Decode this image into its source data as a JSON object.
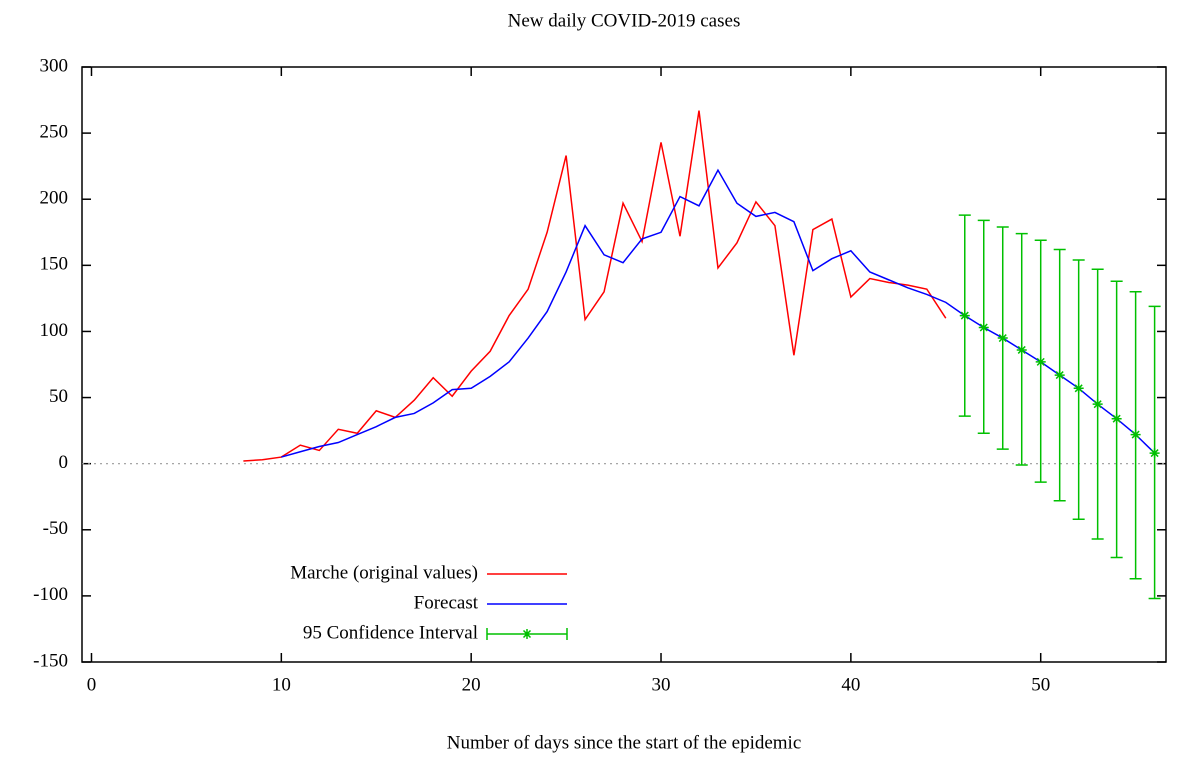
{
  "chart_data": {
    "type": "line",
    "title": "New daily COVID-2019 cases",
    "xlabel": "Number of days since the start of the epidemic",
    "xlim": [
      -0.5,
      56.6
    ],
    "ylim": [
      -150,
      300
    ],
    "xticks": [
      0,
      10,
      20,
      30,
      40,
      50
    ],
    "yticks": [
      -150,
      -100,
      -50,
      0,
      50,
      100,
      150,
      200,
      250,
      300
    ],
    "zero_line": true,
    "mirror_ticks": true,
    "legend": "lower left",
    "series": [
      {
        "name": "Marche (original values)",
        "color": "#ff0000",
        "style": "line",
        "x": [
          8,
          9,
          10,
          11,
          12,
          13,
          14,
          15,
          16,
          17,
          18,
          19,
          20,
          21,
          22,
          23,
          24,
          25,
          26,
          27,
          28,
          29,
          30,
          31,
          32,
          33,
          34,
          35,
          36,
          37,
          38,
          39,
          40,
          41,
          42,
          43,
          44,
          45
        ],
        "values": [
          2,
          3,
          5,
          14,
          10,
          26,
          23,
          40,
          35,
          48,
          65,
          51,
          70,
          85,
          112,
          132,
          175,
          233,
          109,
          130,
          197,
          168,
          243,
          172,
          267,
          148,
          167,
          198,
          180,
          82,
          177,
          185,
          126,
          140,
          137,
          135,
          132,
          110
        ]
      },
      {
        "name": "Forecast",
        "color": "#0000ff",
        "style": "line",
        "x": [
          10,
          11,
          12,
          13,
          14,
          15,
          16,
          17,
          18,
          19,
          20,
          21,
          22,
          23,
          24,
          25,
          26,
          27,
          28,
          29,
          30,
          31,
          32,
          33,
          34,
          35,
          36,
          37,
          38,
          39,
          40,
          41,
          42,
          43,
          44,
          45,
          46,
          47,
          48,
          49,
          50,
          51,
          52,
          53,
          54,
          55,
          56
        ],
        "values": [
          5,
          9,
          13,
          16,
          22,
          28,
          35,
          38,
          46,
          56,
          57,
          66,
          77,
          95,
          115,
          145,
          180,
          158,
          152,
          170,
          175,
          202,
          195,
          222,
          197,
          187,
          190,
          183,
          146,
          155,
          161,
          145,
          139,
          133,
          128,
          122,
          112,
          103,
          95,
          86,
          77,
          67,
          57,
          45,
          34,
          22,
          8
        ]
      },
      {
        "name": "95 Confidence Interval",
        "color": "#00c000",
        "style": "errorbar",
        "x": [
          46,
          47,
          48,
          49,
          50,
          51,
          52,
          53,
          54,
          55,
          56
        ],
        "values": [
          112,
          103,
          95,
          86,
          77,
          67,
          57,
          45,
          34,
          22,
          8
        ],
        "low": [
          36,
          23,
          11,
          -1,
          -14,
          -28,
          -42,
          -57,
          -71,
          -87,
          -102
        ],
        "high": [
          188,
          184,
          179,
          174,
          169,
          162,
          154,
          147,
          138,
          130,
          119
        ]
      }
    ]
  }
}
